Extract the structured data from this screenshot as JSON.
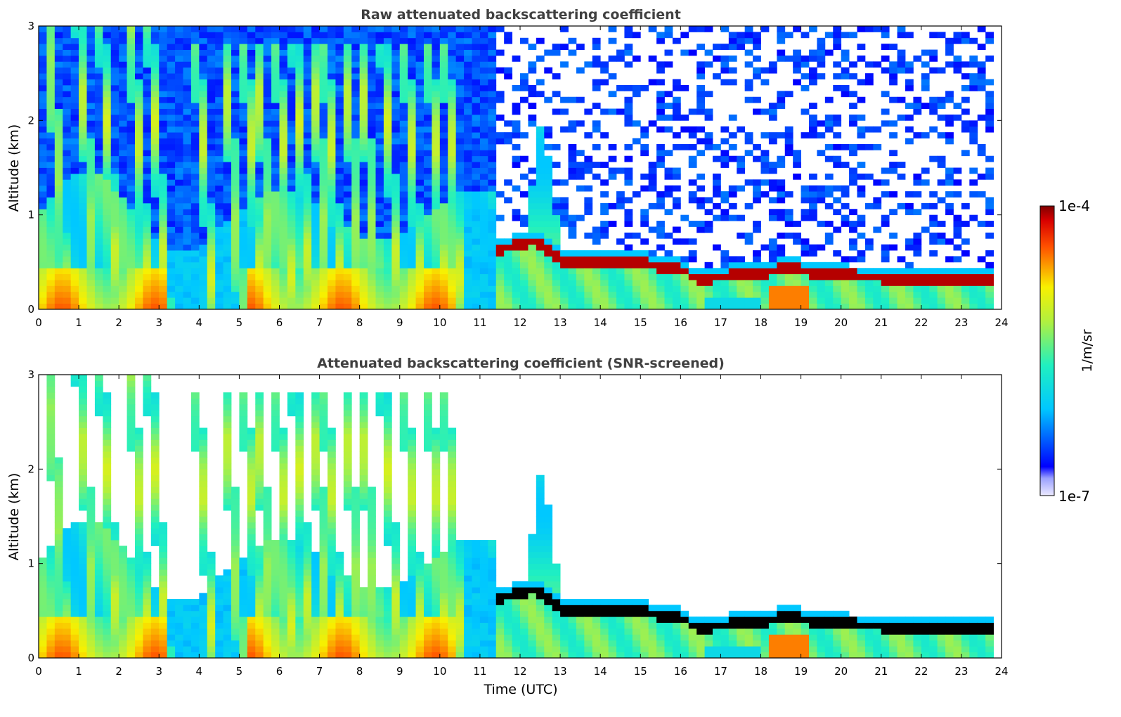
{
  "chart_data": [
    {
      "type": "heatmap",
      "title": "Raw attenuated backscattering coefficient",
      "xlabel": "",
      "ylabel": "Altitude (km)",
      "xlim": [
        0,
        24
      ],
      "ylim": [
        0,
        3
      ],
      "x_ticks": [
        "0",
        "1",
        "2",
        "3",
        "4",
        "5",
        "6",
        "7",
        "8",
        "9",
        "10",
        "11",
        "12",
        "13",
        "14",
        "15",
        "16",
        "17",
        "18",
        "19",
        "20",
        "21",
        "22",
        "23",
        "24"
      ],
      "y_ticks": [
        "0",
        "1",
        "2",
        "3"
      ],
      "grid": false,
      "screened": false,
      "features": {
        "boundary_layer_top_km": 0.5,
        "cloud_layer": [
          {
            "t": 11.35,
            "alt": 0.63
          },
          {
            "t": 11.8,
            "alt": 0.66
          },
          {
            "t": 12.3,
            "alt": 0.72
          },
          {
            "t": 13.2,
            "alt": 0.47
          },
          {
            "t": 14.0,
            "alt": 0.52
          },
          {
            "t": 15.0,
            "alt": 0.49
          },
          {
            "t": 16.0,
            "alt": 0.42
          },
          {
            "t": 16.4,
            "alt": 0.32
          },
          {
            "t": 17.5,
            "alt": 0.36
          },
          {
            "t": 18.8,
            "alt": 0.43
          },
          {
            "t": 19.5,
            "alt": 0.37
          },
          {
            "t": 21.0,
            "alt": 0.33
          },
          {
            "t": 23.8,
            "alt": 0.32
          }
        ],
        "data_end_hour": 23.8
      }
    },
    {
      "type": "heatmap",
      "title": "Attenuated backscattering coefficient (SNR-screened)",
      "xlabel": "Time (UTC)",
      "ylabel": "Altitude (km)",
      "xlim": [
        0,
        24
      ],
      "ylim": [
        0,
        3
      ],
      "x_ticks": [
        "0",
        "1",
        "2",
        "3",
        "4",
        "5",
        "6",
        "7",
        "8",
        "9",
        "10",
        "11",
        "12",
        "13",
        "14",
        "15",
        "16",
        "17",
        "18",
        "19",
        "20",
        "21",
        "22",
        "23",
        "24"
      ],
      "y_ticks": [
        "0",
        "1",
        "2",
        "3"
      ],
      "grid": false,
      "screened": true
    }
  ],
  "colorbar": {
    "label": "1/m/sr",
    "max_label": "1e-4",
    "min_label": "1e-7",
    "scale": "log",
    "colormap": "jet",
    "range": [
      1e-07,
      0.0001
    ]
  }
}
